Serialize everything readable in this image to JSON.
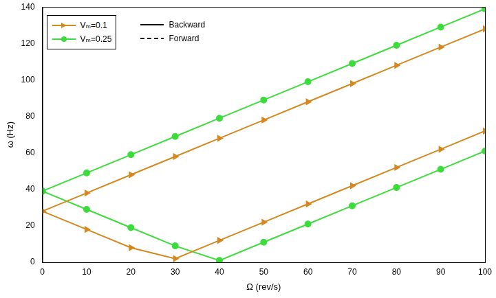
{
  "chart_data": {
    "type": "line",
    "x_label": "Ω (rev/s)",
    "y_label": "ω (Hz)",
    "x": [
      0,
      10,
      20,
      30,
      40,
      50,
      60,
      70,
      80,
      90,
      100
    ],
    "xlim": [
      0,
      100
    ],
    "xticks": [
      0,
      10,
      20,
      30,
      40,
      50,
      60,
      70,
      80,
      90,
      100
    ],
    "ylim": [
      0,
      140
    ],
    "yticks": [
      0,
      20,
      40,
      60,
      80,
      100,
      120,
      140
    ],
    "grid": false,
    "legend": "upper left",
    "series": [
      {
        "name": "Vₘ=0.1",
        "color": "#d4881e",
        "marker": "triangle-right",
        "line_style": "solid",
        "values": [
          28,
          38,
          48,
          58,
          68,
          78,
          88,
          98,
          108,
          118,
          128
        ]
      },
      {
        "name": "Vₘ=0.1",
        "color": "#d4881e",
        "marker": "triangle-right",
        "line_style": "solid",
        "values": [
          28,
          18,
          8,
          2,
          12,
          22,
          32,
          42,
          52,
          62,
          72
        ]
      },
      {
        "name": "Vₘ=0.25",
        "color": "#3ddc3d",
        "marker": "circle",
        "line_style": "solid",
        "values": [
          39,
          49,
          59,
          69,
          79,
          89,
          99,
          109,
          119,
          129,
          139
        ]
      },
      {
        "name": "Vₘ=0.25",
        "color": "#3ddc3d",
        "marker": "circle",
        "line_style": "solid",
        "values": [
          39,
          29,
          19,
          9,
          1,
          11,
          21,
          31,
          41,
          51,
          61
        ]
      }
    ],
    "line_style_key": [
      {
        "name": "Backward",
        "line_style": "solid"
      },
      {
        "name": "Forward",
        "line_style": "dashed"
      }
    ]
  }
}
